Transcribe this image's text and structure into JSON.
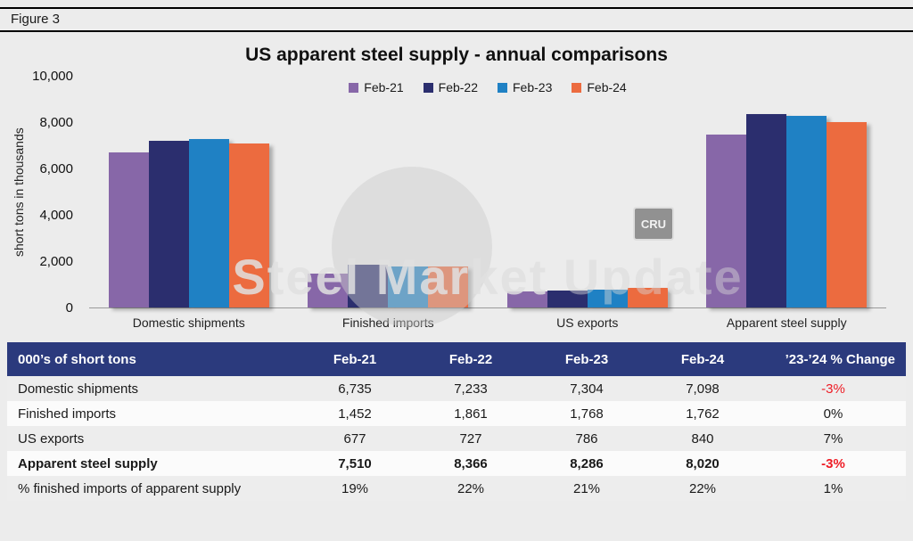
{
  "figure_label": "Figure 3",
  "watermark": {
    "text_primary": "Steel Market",
    "text_secondary": " Update",
    "logo_text": "CRU"
  },
  "chart_data": {
    "type": "bar",
    "title": "US apparent steel supply - annual comparisons",
    "xlabel": "",
    "ylabel": "short tons in thousands",
    "ylim": [
      0,
      10000
    ],
    "yticks": [
      0,
      2000,
      4000,
      6000,
      8000,
      10000
    ],
    "ytick_labels": [
      "0",
      "2,000",
      "4,000",
      "6,000",
      "8,000",
      "10,000"
    ],
    "grid": false,
    "legend_position": "top-center",
    "categories": [
      "Domestic shipments",
      "Finished imports",
      "US exports",
      "Apparent steel supply"
    ],
    "series": [
      {
        "name": "Feb-21",
        "color": "#8767A8",
        "values": [
          6735,
          1452,
          677,
          7510
        ]
      },
      {
        "name": "Feb-22",
        "color": "#2B2E6E",
        "values": [
          7233,
          1861,
          727,
          8366
        ]
      },
      {
        "name": "Feb-23",
        "color": "#1F81C4",
        "values": [
          7304,
          1768,
          786,
          8286
        ]
      },
      {
        "name": "Feb-24",
        "color": "#EC6B3F",
        "values": [
          7098,
          1762,
          840,
          8020
        ]
      }
    ]
  },
  "table": {
    "header": [
      "000’s of short tons",
      "Feb-21",
      "Feb-22",
      "Feb-23",
      "Feb-24",
      "’23-’24 % Change"
    ],
    "rows": [
      {
        "label": "Domestic shipments",
        "values": [
          "6,735",
          "7,233",
          "7,304",
          "7,098"
        ],
        "change": "-3%",
        "bold": false,
        "negative": true
      },
      {
        "label": "Finished imports",
        "values": [
          "1,452",
          "1,861",
          "1,768",
          "1,762"
        ],
        "change": "0%",
        "bold": false,
        "negative": false
      },
      {
        "label": "US exports",
        "values": [
          "677",
          "727",
          "786",
          "840"
        ],
        "change": "7%",
        "bold": false,
        "negative": false
      },
      {
        "label": "Apparent steel supply",
        "values": [
          "7,510",
          "8,366",
          "8,286",
          "8,020"
        ],
        "change": "-3%",
        "bold": true,
        "negative": true
      },
      {
        "label": "% finished imports of apparent supply",
        "values": [
          "19%",
          "22%",
          "21%",
          "22%"
        ],
        "change": "1%",
        "bold": false,
        "negative": false
      }
    ],
    "colors": {
      "header_bg": "#2B3A7D",
      "header_text": "#FFFFFF",
      "negative_text": "#EE1C25",
      "row_alt_bg": "#EDEDED",
      "row_bg": "#FBFBFB"
    }
  }
}
